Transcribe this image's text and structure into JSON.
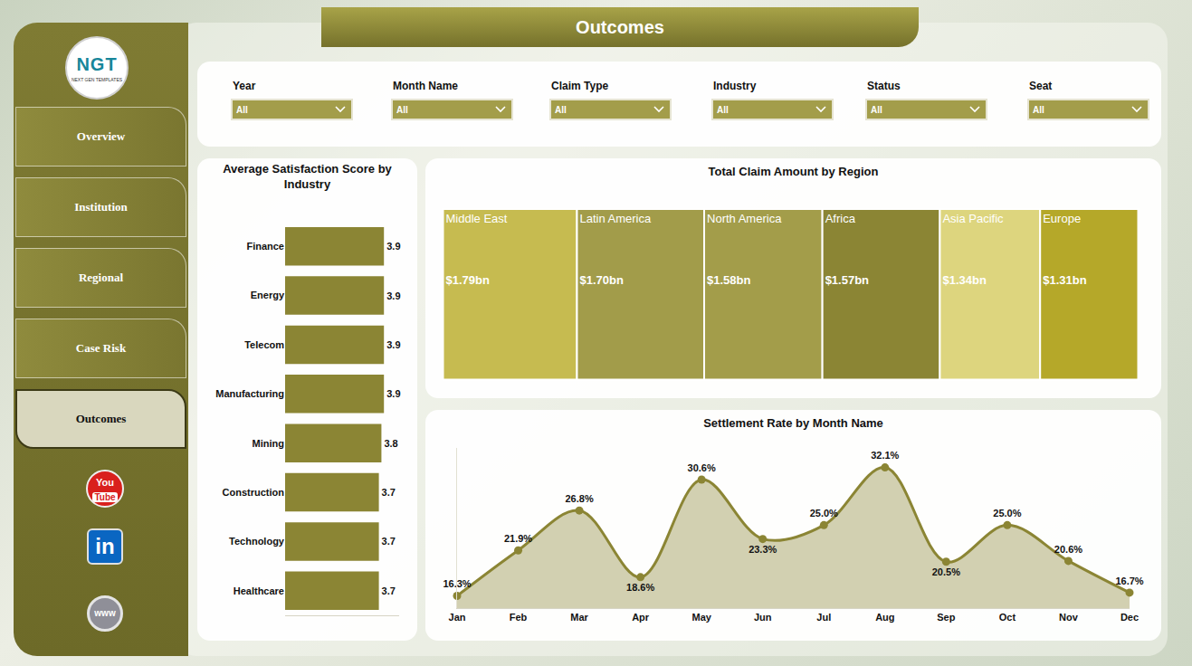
{
  "header": {
    "title": "Outcomes"
  },
  "logo": {
    "text": "NGT",
    "subtitle": "NEXT GEN TEMPLATES"
  },
  "nav": {
    "items": [
      "Overview",
      "Institution",
      "Regional",
      "Case Risk",
      "Outcomes"
    ],
    "active": "Outcomes"
  },
  "icons": {
    "youtube": [
      "You",
      "Tube"
    ],
    "linkedin": "in",
    "web": "www"
  },
  "filters": [
    {
      "label": "Year",
      "value": "All"
    },
    {
      "label": "Month Name",
      "value": "All"
    },
    {
      "label": "Claim Type",
      "value": "All"
    },
    {
      "label": "Industry",
      "value": "All"
    },
    {
      "label": "Status",
      "value": "All"
    },
    {
      "label": "Seat",
      "value": "All"
    }
  ],
  "chart_data": [
    {
      "type": "bar",
      "title": "Average Satisfaction Score by Industry",
      "orientation": "horizontal",
      "categories": [
        "Finance",
        "Energy",
        "Telecom",
        "Manufacturing",
        "Mining",
        "Construction",
        "Technology",
        "Healthcare"
      ],
      "values": [
        3.9,
        3.9,
        3.9,
        3.9,
        3.8,
        3.7,
        3.7,
        3.7
      ],
      "color": "#8b8534",
      "xlim": [
        0,
        4.5
      ],
      "xticks": [],
      "data_labels": true,
      "tick_labels": "y"
    },
    {
      "type": "treemap",
      "title": "Total Claim Amount by Region",
      "categories": [
        "Middle East",
        "North America",
        "Asia Pacific",
        "Latin America",
        "Africa",
        "Europe"
      ],
      "values": [
        1790000000,
        1580000000,
        1340000000,
        1700000000,
        1570000000,
        1310000000
      ],
      "value_labels": [
        "$1.79bn",
        "$1.58bn",
        "$1.34bn",
        "$1.70bn",
        "$1.57bn",
        "$1.31bn"
      ],
      "colors": [
        "#c6bb50",
        "#a39d4a",
        "#ddd57e",
        "#a29c4a",
        "#8b8534",
        "#b5a829"
      ],
      "data_labels": true
    },
    {
      "type": "area",
      "title": "Settlement Rate by Month Name",
      "categories": [
        "Jan",
        "Feb",
        "Mar",
        "Apr",
        "May",
        "Jun",
        "Jul",
        "Aug",
        "Sep",
        "Oct",
        "Nov",
        "Dec"
      ],
      "values": [
        16.3,
        21.9,
        26.8,
        18.6,
        30.6,
        23.3,
        25.0,
        32.1,
        20.5,
        25.0,
        20.6,
        16.7
      ],
      "value_labels": [
        "16.3%",
        "21.9%",
        "26.8%",
        "18.6%",
        "30.6%",
        "23.3%",
        "25.0%",
        "32.1%",
        "20.5%",
        "25.0%",
        "20.6%",
        "16.7%"
      ],
      "color": "#8b8534",
      "ylim": [
        14.8,
        34.5
      ],
      "yticks": [],
      "data_labels": true,
      "tick_labels": "x",
      "line_style": "spline",
      "marker": "circle"
    }
  ]
}
